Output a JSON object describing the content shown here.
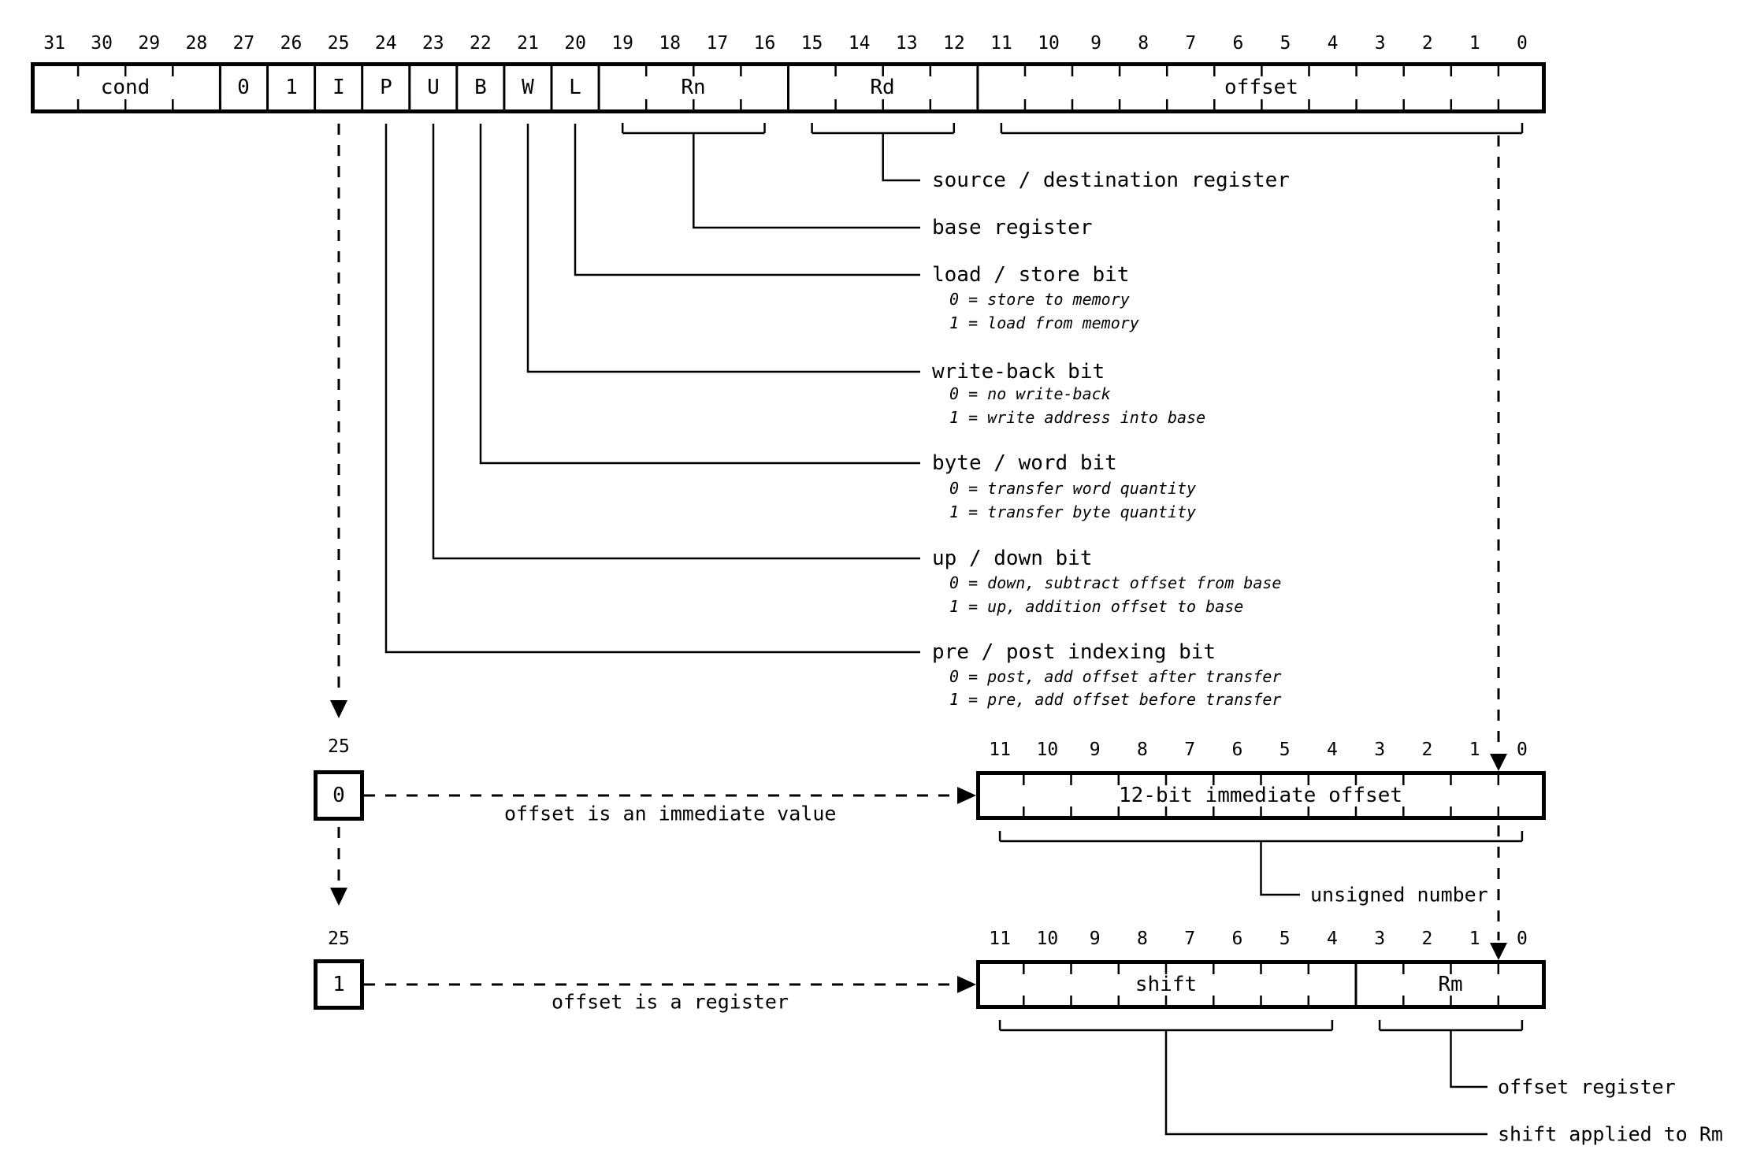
{
  "figure_title": "single data transfer instruction format",
  "main_bits": [
    "31",
    "30",
    "29",
    "28",
    "27",
    "26",
    "25",
    "24",
    "23",
    "22",
    "21",
    "20",
    "19",
    "18",
    "17",
    "16",
    "15",
    "14",
    "13",
    "12",
    "11",
    "10",
    "9",
    "8",
    "7",
    "6",
    "5",
    "4",
    "3",
    "2",
    "1",
    "0"
  ],
  "sub_bits": [
    "11",
    "10",
    "9",
    "8",
    "7",
    "6",
    "5",
    "4",
    "3",
    "2",
    "1",
    "0"
  ],
  "fields": {
    "cond": "cond",
    "const0": "0",
    "const1": "1",
    "i": "I",
    "p": "P",
    "u": "U",
    "b": "B",
    "w": "W",
    "l": "L",
    "rn": "Rn",
    "rd": "Rd",
    "offset": "offset"
  },
  "callouts": [
    {
      "label": "source / destination register",
      "lines": []
    },
    {
      "label": "base register",
      "lines": []
    },
    {
      "label": "load / store bit",
      "lines": [
        "0 = store to memory",
        "1 = load from memory"
      ]
    },
    {
      "label": "write-back bit",
      "lines": [
        "0 = no write-back",
        "1 = write address into base"
      ]
    },
    {
      "label": "byte / word bit",
      "lines": [
        "0 = transfer word quantity",
        "1 = transfer byte quantity"
      ]
    },
    {
      "label": "up / down bit",
      "lines": [
        "0 = down, subtract offset from base",
        "1 = up, addition offset to base"
      ]
    },
    {
      "label": "pre / post indexing bit",
      "lines": [
        "0 = post, add offset after transfer",
        "1 = pre, add offset before transfer"
      ]
    }
  ],
  "i_select": {
    "bit_label": "25",
    "immediate_value": "0",
    "register_value": "1"
  },
  "immediate_branch": {
    "arrow_text": "offset is an immediate value",
    "box_label": "12-bit immediate offset",
    "bracket_label": "unsigned number"
  },
  "register_branch": {
    "arrow_text": "offset is a register",
    "shift_label": "shift",
    "rm_label": "Rm",
    "offset_register_label": "offset register",
    "shift_applied_label": "shift applied to Rm"
  },
  "colors": {
    "ink": "#000000",
    "background": "#ffffff"
  }
}
